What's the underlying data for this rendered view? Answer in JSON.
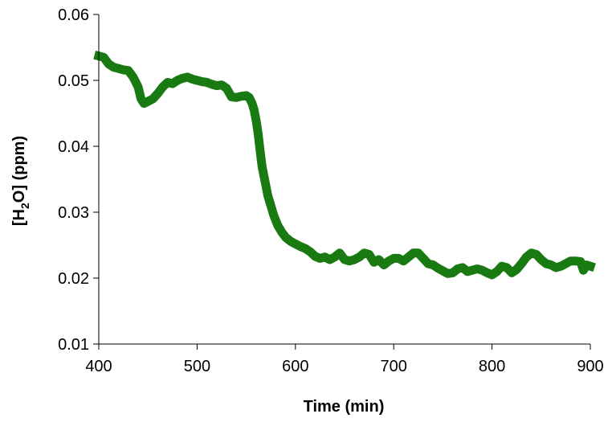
{
  "chart_data": {
    "type": "line",
    "xlabel": "Time (min)",
    "ylabel_parts": [
      "[H",
      "2",
      "O] (ppm)"
    ],
    "xlim": [
      400,
      900
    ],
    "ylim": [
      0.01,
      0.06
    ],
    "x_ticks": [
      400,
      500,
      600,
      700,
      800,
      900
    ],
    "y_ticks": [
      "0.01",
      "0.02",
      "0.03",
      "0.04",
      "0.05",
      "0.06"
    ],
    "grid": false,
    "legend": "none",
    "series": [
      {
        "color": "#1a7a12",
        "x": [
          400,
          405,
          410,
          415,
          420,
          425,
          430,
          435,
          440,
          443,
          446,
          450,
          455,
          460,
          465,
          470,
          475,
          480,
          485,
          490,
          495,
          500,
          505,
          510,
          515,
          520,
          525,
          530,
          535,
          540,
          545,
          550,
          553,
          556,
          558,
          560,
          562,
          564,
          566,
          568,
          570,
          572,
          575,
          578,
          582,
          586,
          590,
          595,
          600,
          605,
          610,
          615,
          620,
          625,
          630,
          635,
          640,
          645,
          650,
          655,
          660,
          665,
          670,
          675,
          680,
          685,
          690,
          695,
          700,
          705,
          710,
          715,
          720,
          725,
          730,
          735,
          740,
          745,
          750,
          755,
          760,
          765,
          770,
          775,
          780,
          785,
          790,
          795,
          800,
          805,
          810,
          815,
          820,
          825,
          830,
          835,
          840,
          845,
          850,
          855,
          860,
          865,
          870,
          875,
          880,
          885,
          890,
          893,
          896,
          900
        ],
        "values": [
          0.0537,
          0.0535,
          0.0525,
          0.052,
          0.0518,
          0.0516,
          0.0515,
          0.0505,
          0.049,
          0.0472,
          0.0465,
          0.0468,
          0.0472,
          0.048,
          0.049,
          0.0497,
          0.0495,
          0.05,
          0.0503,
          0.0505,
          0.0502,
          0.05,
          0.0498,
          0.0497,
          0.0494,
          0.0492,
          0.0493,
          0.0488,
          0.0475,
          0.0474,
          0.0476,
          0.0477,
          0.0474,
          0.0465,
          0.0455,
          0.044,
          0.042,
          0.0395,
          0.037,
          0.0355,
          0.034,
          0.0325,
          0.031,
          0.0295,
          0.028,
          0.027,
          0.0262,
          0.0256,
          0.0252,
          0.0248,
          0.0245,
          0.024,
          0.0233,
          0.023,
          0.0232,
          0.0228,
          0.0232,
          0.0238,
          0.0228,
          0.0226,
          0.0228,
          0.0232,
          0.0238,
          0.0236,
          0.0224,
          0.0228,
          0.022,
          0.0226,
          0.023,
          0.023,
          0.0226,
          0.0232,
          0.0238,
          0.0238,
          0.023,
          0.0222,
          0.022,
          0.0215,
          0.0211,
          0.0207,
          0.0208,
          0.0214,
          0.0216,
          0.021,
          0.0212,
          0.0214,
          0.0212,
          0.0208,
          0.0205,
          0.021,
          0.0218,
          0.0216,
          0.0208,
          0.0213,
          0.0222,
          0.0232,
          0.0238,
          0.0236,
          0.0228,
          0.0222,
          0.022,
          0.0216,
          0.0218,
          0.0222,
          0.0226,
          0.0226,
          0.0225,
          0.0212,
          0.022,
          0.0218
        ]
      }
    ]
  }
}
